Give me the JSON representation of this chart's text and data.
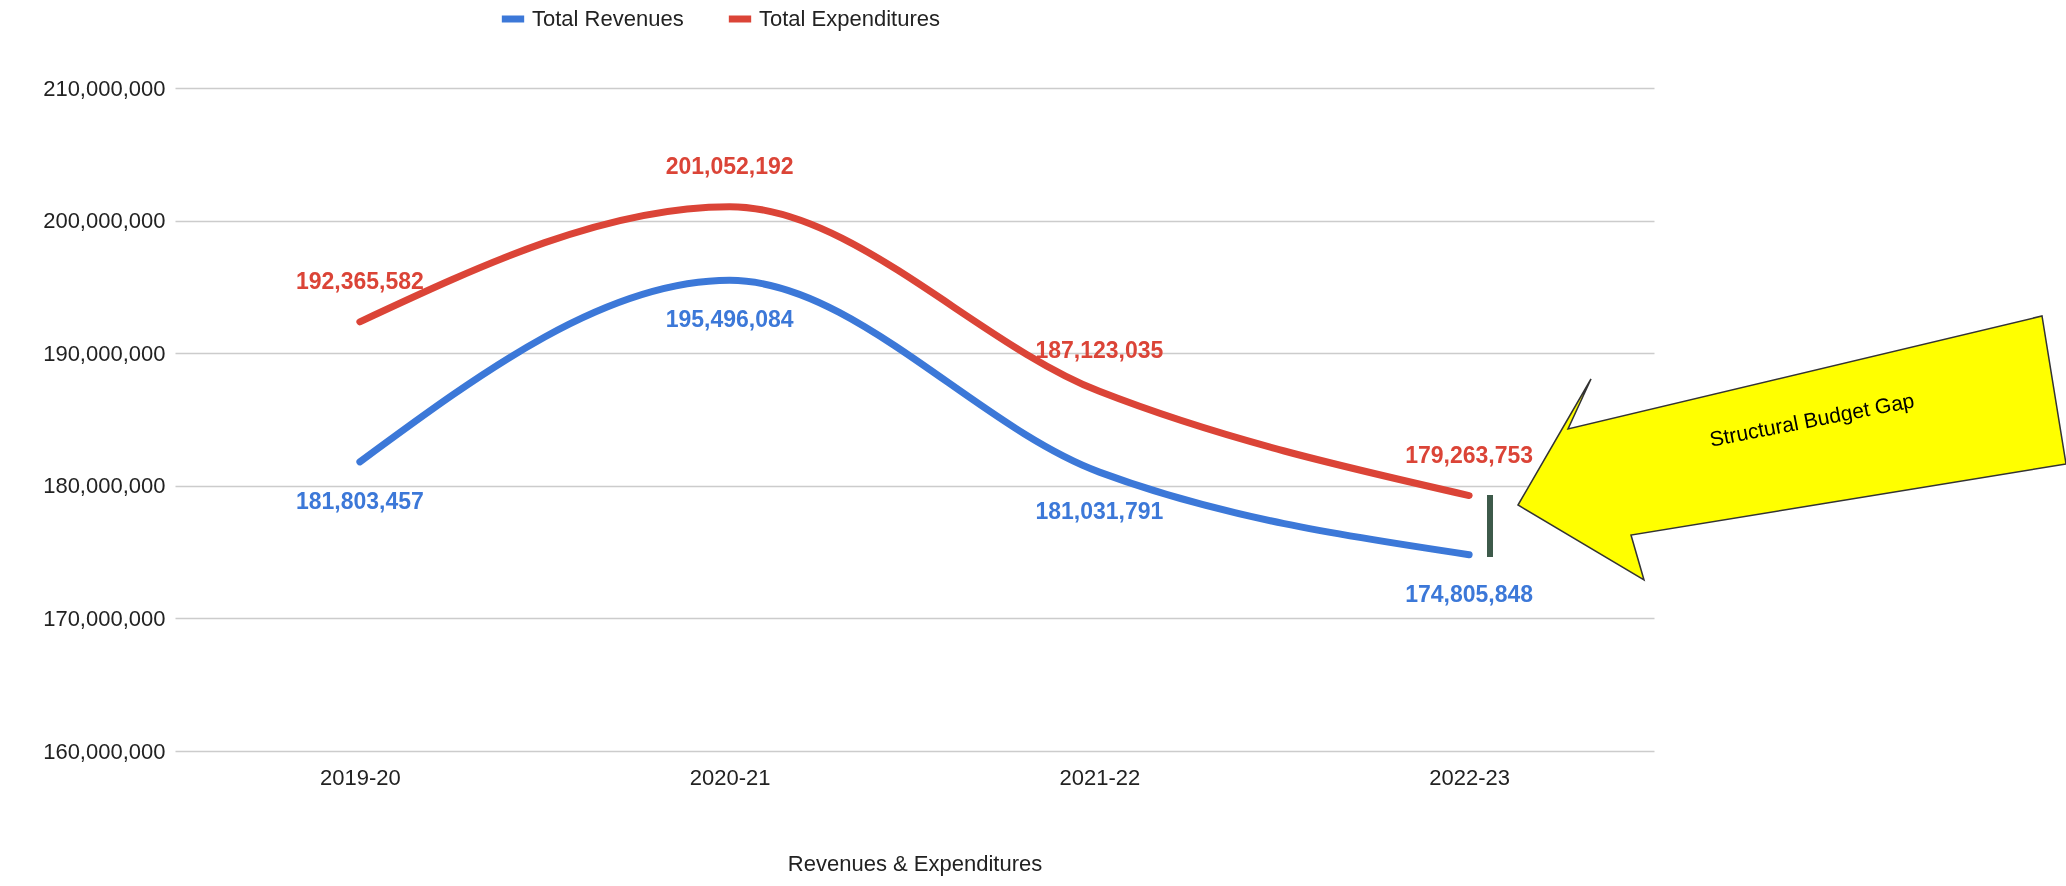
{
  "chart_data": {
    "type": "line",
    "xlabel": "Revenues & Expenditures",
    "categories": [
      "2019-20",
      "2020-21",
      "2021-22",
      "2022-23"
    ],
    "series": [
      {
        "name": "Total Revenues",
        "color": "#3c78d8",
        "values": [
          181803457,
          195496084,
          181031791,
          174805848
        ],
        "value_labels": [
          "181,803,457",
          "195,496,084",
          "181,031,791",
          "174,805,848"
        ]
      },
      {
        "name": "Total Expenditures",
        "color": "#db4437",
        "values": [
          192365582,
          201052192,
          187123035,
          179263753
        ],
        "value_labels": [
          "192,365,582",
          "201,052,192",
          "187,123,035",
          "179,263,753"
        ]
      }
    ],
    "ylim": [
      160000000,
      210000000
    ],
    "yticks": [
      {
        "value": 160000000,
        "label": "160,000,000"
      },
      {
        "value": 170000000,
        "label": "170,000,000"
      },
      {
        "value": 180000000,
        "label": "180,000,000"
      },
      {
        "value": 190000000,
        "label": "190,000,000"
      },
      {
        "value": 200000000,
        "label": "200,000,000"
      },
      {
        "value": 210000000,
        "label": "210,000,000"
      }
    ],
    "grid": "y",
    "legend": "top",
    "line_style": "solid",
    "annotations": [
      "Structural Budget Gap"
    ]
  }
}
